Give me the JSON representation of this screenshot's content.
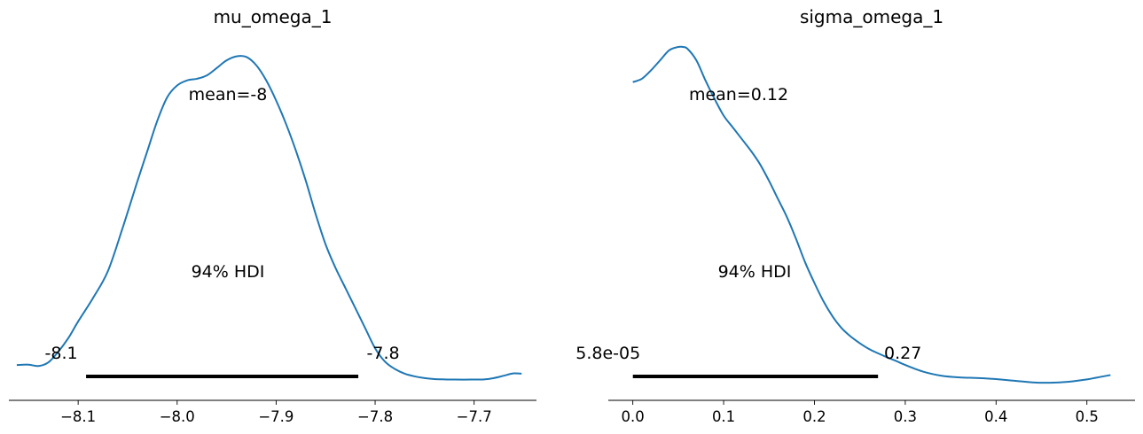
{
  "chart_data": [
    {
      "type": "line",
      "title": "mu_omega_1",
      "series_color": "#1f77b4",
      "mean_label": "mean=-8",
      "hdi_label": "94% HDI",
      "hdi_low_label": "-8.1",
      "hdi_high_label": "-7.8",
      "hdi": [
        -8.092,
        -7.817
      ],
      "xlim": [
        -8.17,
        -7.637
      ],
      "xticks": [
        -8.1,
        -8.0,
        -7.9,
        -7.8,
        -7.7
      ],
      "xtick_labels": [
        "−8.1",
        "−8.0",
        "−7.9",
        "−7.8",
        "−7.7"
      ],
      "ylim": [
        0,
        1
      ],
      "x": [
        -8.162,
        -8.15,
        -8.14,
        -8.13,
        -8.12,
        -8.11,
        -8.1,
        -8.085,
        -8.07,
        -8.055,
        -8.04,
        -8.03,
        -8.02,
        -8.01,
        -8.0,
        -7.99,
        -7.98,
        -7.97,
        -7.96,
        -7.95,
        -7.94,
        -7.93,
        -7.92,
        -7.91,
        -7.9,
        -7.89,
        -7.88,
        -7.87,
        -7.86,
        -7.85,
        -7.84,
        -7.83,
        -7.82,
        -7.81,
        -7.8,
        -7.79,
        -7.78,
        -7.77,
        -7.76,
        -7.75,
        -7.74,
        -7.73,
        -7.72,
        -7.71,
        -7.7,
        -7.69,
        -7.68,
        -7.67,
        -7.66,
        -7.652
      ],
      "values": [
        0.05,
        0.051,
        0.047,
        0.058,
        0.09,
        0.13,
        0.18,
        0.25,
        0.33,
        0.46,
        0.6,
        0.69,
        0.78,
        0.85,
        0.885,
        0.9,
        0.905,
        0.915,
        0.937,
        0.96,
        0.972,
        0.97,
        0.945,
        0.9,
        0.84,
        0.77,
        0.69,
        0.6,
        0.5,
        0.41,
        0.34,
        0.28,
        0.22,
        0.16,
        0.1,
        0.06,
        0.038,
        0.024,
        0.016,
        0.011,
        0.008,
        0.007,
        0.0065,
        0.0063,
        0.0066,
        0.007,
        0.011,
        0.018,
        0.025,
        0.024
      ]
    },
    {
      "type": "line",
      "title": "sigma_omega_1",
      "series_color": "#1f77b4",
      "mean_label": "mean=0.12",
      "hdi_label": "94% HDI",
      "hdi_low_label": "5.8e-05",
      "hdi_high_label": "0.27",
      "hdi": [
        5.8e-05,
        0.27
      ],
      "xlim": [
        -0.027,
        0.553
      ],
      "xticks": [
        0.0,
        0.1,
        0.2,
        0.3,
        0.4,
        0.5
      ],
      "xtick_labels": [
        "0.0",
        "0.1",
        "0.2",
        "0.3",
        "0.4",
        "0.5"
      ],
      "ylim": [
        0,
        1
      ],
      "x": [
        0.0,
        0.01,
        0.02,
        0.03,
        0.04,
        0.05,
        0.055,
        0.06,
        0.07,
        0.08,
        0.09,
        0.1,
        0.11,
        0.12,
        0.13,
        0.14,
        0.15,
        0.16,
        0.17,
        0.18,
        0.19,
        0.2,
        0.21,
        0.22,
        0.23,
        0.24,
        0.25,
        0.26,
        0.27,
        0.28,
        0.29,
        0.3,
        0.32,
        0.34,
        0.36,
        0.38,
        0.4,
        0.42,
        0.44,
        0.46,
        0.48,
        0.5,
        0.51,
        0.52,
        0.526
      ],
      "values": [
        0.895,
        0.905,
        0.93,
        0.96,
        0.99,
        1.0,
        1.0,
        0.995,
        0.96,
        0.9,
        0.845,
        0.795,
        0.76,
        0.725,
        0.69,
        0.65,
        0.6,
        0.545,
        0.49,
        0.425,
        0.355,
        0.295,
        0.24,
        0.195,
        0.16,
        0.135,
        0.115,
        0.098,
        0.085,
        0.073,
        0.062,
        0.05,
        0.03,
        0.018,
        0.013,
        0.011,
        0.008,
        0.003,
        -0.002,
        -0.003,
        0.0,
        0.007,
        0.012,
        0.017,
        0.02
      ]
    }
  ]
}
